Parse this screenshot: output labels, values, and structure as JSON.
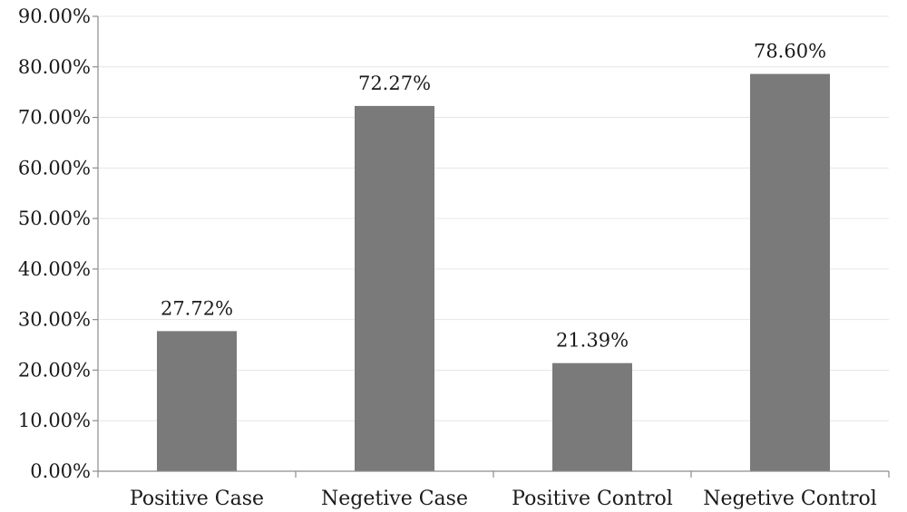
{
  "chart_data": {
    "type": "bar",
    "categories": [
      "Positive Case",
      "Negetive Case",
      "Positive Control",
      "Negetive Control"
    ],
    "values": [
      27.72,
      72.27,
      21.39,
      78.6
    ],
    "value_labels": [
      "27.72%",
      "72.27%",
      "21.39%",
      "78.60%"
    ],
    "ylim": [
      0,
      90
    ],
    "yticks": [
      0,
      10,
      20,
      30,
      40,
      50,
      60,
      70,
      80,
      90
    ],
    "ytick_labels": [
      "0.00%",
      "10.00%",
      "20.00%",
      "30.00%",
      "40.00%",
      "50.00%",
      "60.00%",
      "70.00%",
      "80.00%",
      "90.00%"
    ],
    "grid": true,
    "legend": "none",
    "colors": {
      "bar": "#7a7a7a",
      "grid": "#e6e6e6",
      "axis": "#8c8c8c"
    }
  }
}
